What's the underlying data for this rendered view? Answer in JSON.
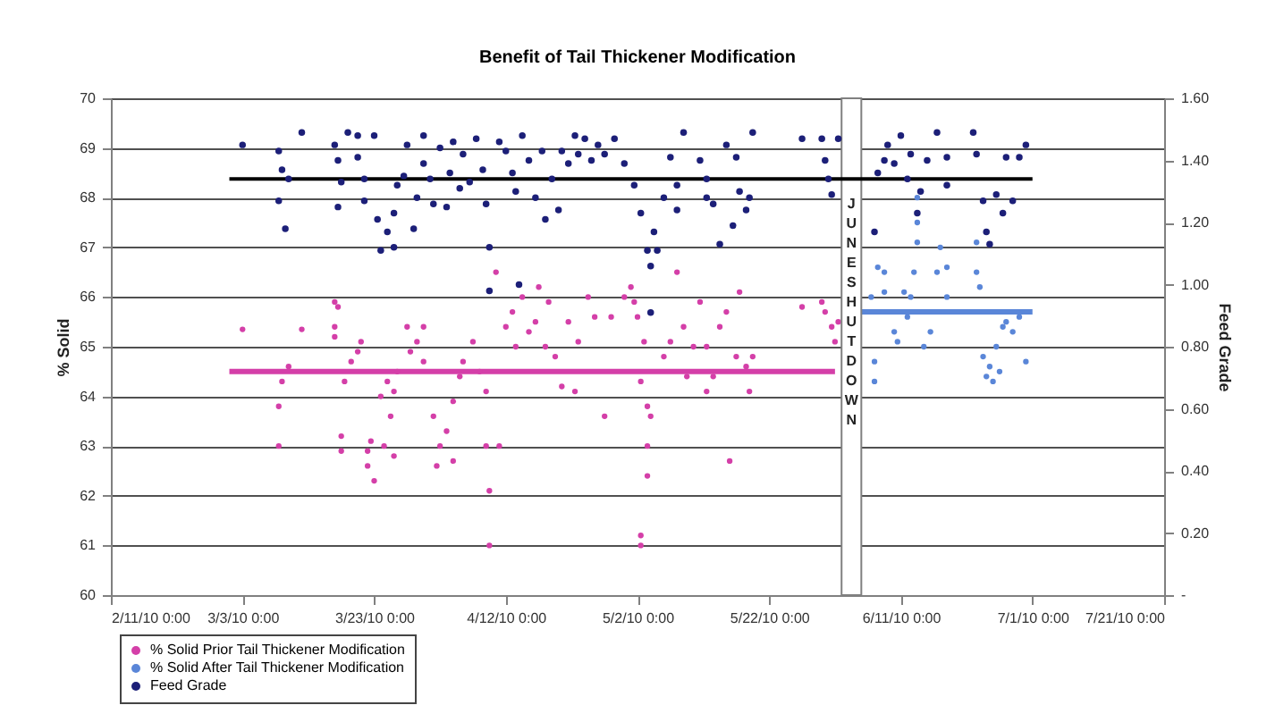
{
  "chart_data": {
    "type": "scatter",
    "title": "Benefit of Tail Thickener Modification",
    "ylabel": "% Solid",
    "y2label": "Feed Grade",
    "xlim": [
      "2010-02-11",
      "2010-07-21"
    ],
    "xticks": [
      {
        "value": "2010-02-11",
        "label": "2/11/10 0:00"
      },
      {
        "value": "2010-03-03",
        "label": "3/3/10 0:00"
      },
      {
        "value": "2010-03-23",
        "label": "3/23/10 0:00"
      },
      {
        "value": "2010-04-12",
        "label": "4/12/10 0:00"
      },
      {
        "value": "2010-05-02",
        "label": "5/2/10 0:00"
      },
      {
        "value": "2010-05-22",
        "label": "5/22/10 0:00"
      },
      {
        "value": "2010-06-11",
        "label": "6/11/10 0:00"
      },
      {
        "value": "2010-07-01",
        "label": "7/1/10 0:00"
      },
      {
        "value": "2010-07-21",
        "label": "7/21/10 0:00"
      }
    ],
    "ylim": [
      60,
      70
    ],
    "yticks": [
      60,
      61,
      62,
      63,
      64,
      65,
      66,
      67,
      68,
      69,
      70
    ],
    "y2lim": [
      0,
      1.6
    ],
    "y2ticks": [
      {
        "value": 0,
        "label": "-"
      },
      {
        "value": 0.2,
        "label": "0.20"
      },
      {
        "value": 0.4,
        "label": "0.40"
      },
      {
        "value": 0.6,
        "label": "0.60"
      },
      {
        "value": 0.8,
        "label": "0.80"
      },
      {
        "value": 1.0,
        "label": "1.00"
      },
      {
        "value": 1.2,
        "label": "1.20"
      },
      {
        "value": 1.4,
        "label": "1.40"
      },
      {
        "value": 1.6,
        "label": "1.60"
      }
    ],
    "grid": "y",
    "legend": "bottom left",
    "marker": "circle",
    "bands": [
      {
        "axis": "x",
        "from": "2010-06-02",
        "to": "2010-06-05",
        "label": "JUNE SHUTDOWN",
        "color": "#ffffff"
      }
    ],
    "series": [
      {
        "name": "% Solid Prior Tail Thickener Modification",
        "color": "#d43fa8",
        "x": [
          "2010-03-03",
          "2010-03-08T12:00",
          "2010-03-08T12:00",
          "2010-03-09",
          "2010-03-10",
          "2010-03-12",
          "2010-03-17",
          "2010-03-17T12:00",
          "2010-03-17",
          "2010-03-17",
          "2010-03-18",
          "2010-03-18",
          "2010-03-18T12:00",
          "2010-03-19T12:00",
          "2010-03-20T12:00",
          "2010-03-21",
          "2010-03-22",
          "2010-03-22",
          "2010-03-23",
          "2010-03-22T12:00",
          "2010-03-24",
          "2010-03-24T12:00",
          "2010-03-25",
          "2010-03-25T12:00",
          "2010-03-26",
          "2010-03-26",
          "2010-03-26T12:00",
          "2010-03-28",
          "2010-03-28T12:00",
          "2010-03-29T12:00",
          "2010-03-30T12:00",
          "2010-03-30T12:00",
          "2010-04-01",
          "2010-04-01T12:00",
          "2010-04-02",
          "2010-04-03",
          "2010-04-04",
          "2010-04-04",
          "2010-04-05",
          "2010-04-05T12:00",
          "2010-04-07",
          "2010-04-08",
          "2010-04-09",
          "2010-04-09",
          "2010-04-09T12:00",
          "2010-04-09T12:00",
          "2010-04-10T12:00",
          "2010-04-11",
          "2010-04-12",
          "2010-04-13",
          "2010-04-13T12:00",
          "2010-04-14T12:00",
          "2010-04-15T12:00",
          "2010-04-16T12:00",
          "2010-04-17",
          "2010-04-18",
          "2010-04-18T12:00",
          "2010-04-19T12:00",
          "2010-04-20T12:00",
          "2010-04-21T12:00",
          "2010-04-22T12:00",
          "2010-04-23",
          "2010-04-24T12:00",
          "2010-04-25T12:00",
          "2010-04-27",
          "2010-04-28",
          "2010-04-30",
          "2010-05-01",
          "2010-05-01T12:00",
          "2010-05-02",
          "2010-05-03",
          "2010-05-02T12:00",
          "2010-05-03T12:00",
          "2010-05-04",
          "2010-05-03T12:00",
          "2010-05-03T12:00",
          "2010-05-02T12:00",
          "2010-05-02T12:00",
          "2010-05-06",
          "2010-05-07",
          "2010-05-08",
          "2010-05-09",
          "2010-05-09T12:00",
          "2010-05-10T12:00",
          "2010-05-11T12:00",
          "2010-05-12T12:00",
          "2010-05-12T12:00",
          "2010-05-13T12:00",
          "2010-05-14T12:00",
          "2010-05-15T12:00",
          "2010-05-16",
          "2010-05-17",
          "2010-05-17T12:00",
          "2010-05-18T12:00",
          "2010-05-19",
          "2010-05-19T12:00",
          "2010-05-27",
          "2010-05-30",
          "2010-05-30T12:00",
          "2010-05-31T12:00",
          "2010-06-01",
          "2010-06-01T12:00"
        ],
        "values": [
          65.35,
          63.0,
          63.8,
          64.3,
          64.6,
          65.35,
          65.9,
          65.8,
          65.4,
          65.2,
          63.2,
          62.9,
          64.3,
          64.7,
          64.9,
          65.1,
          62.9,
          62.6,
          62.3,
          63.1,
          64.0,
          63.0,
          64.3,
          63.6,
          64.1,
          62.8,
          64.5,
          65.4,
          64.9,
          65.1,
          64.7,
          65.4,
          63.6,
          62.6,
          63.0,
          63.3,
          63.9,
          62.7,
          64.4,
          64.7,
          65.1,
          64.5,
          64.1,
          63.0,
          62.1,
          61.0,
          66.5,
          63.0,
          65.4,
          65.7,
          65.0,
          66.0,
          65.3,
          65.5,
          66.2,
          65.0,
          65.9,
          64.8,
          64.2,
          65.5,
          64.1,
          65.1,
          66.0,
          65.6,
          63.6,
          65.6,
          66.0,
          66.2,
          65.9,
          65.6,
          65.1,
          64.3,
          63.8,
          63.6,
          63.0,
          62.4,
          61.2,
          61.0,
          64.8,
          65.1,
          66.5,
          65.4,
          64.4,
          65.0,
          65.9,
          65.0,
          64.1,
          64.4,
          65.4,
          65.7,
          62.7,
          64.8,
          66.1,
          64.6,
          64.1,
          64.8,
          65.8,
          65.9,
          65.7,
          65.4,
          65.1,
          65.5
        ]
      },
      {
        "name": "% Solid After Tail Thickener Modification",
        "color": "#5a86d8",
        "x": [
          "2010-06-06T12:00",
          "2010-06-07",
          "2010-06-07",
          "2010-06-07T12:00",
          "2010-06-08T12:00",
          "2010-06-08T12:00",
          "2010-06-10",
          "2010-06-10T12:00",
          "2010-06-11T12:00",
          "2010-06-12",
          "2010-06-12T12:00",
          "2010-06-13",
          "2010-06-13T12:00",
          "2010-06-13T12:00",
          "2010-06-13T12:00",
          "2010-06-14T12:00",
          "2010-06-15T12:00",
          "2010-06-16T12:00",
          "2010-06-17",
          "2010-06-18",
          "2010-06-18",
          "2010-06-22T12:00",
          "2010-06-22T12:00",
          "2010-06-23",
          "2010-06-23T12:00",
          "2010-06-24",
          "2010-06-24T12:00",
          "2010-06-25",
          "2010-06-25T12:00",
          "2010-06-26",
          "2010-06-26T12:00",
          "2010-06-27",
          "2010-06-28",
          "2010-06-29",
          "2010-06-30"
        ],
        "values": [
          66.0,
          64.7,
          64.3,
          66.6,
          66.5,
          66.1,
          65.3,
          65.1,
          66.1,
          65.6,
          66.0,
          66.5,
          68.0,
          67.5,
          67.1,
          65.0,
          65.3,
          66.5,
          67.0,
          66.0,
          66.6,
          67.1,
          66.5,
          66.2,
          64.8,
          64.4,
          64.6,
          64.3,
          65.0,
          64.5,
          65.4,
          65.5,
          65.3,
          65.6,
          64.7
        ]
      },
      {
        "name": "Feed Grade",
        "axis": "y2",
        "color": "#1c1f78",
        "x": [
          "2010-03-03",
          "2010-03-08T12:00",
          "2010-03-09",
          "2010-03-10",
          "2010-03-08T12:00",
          "2010-03-09T12:00",
          "2010-03-12",
          "2010-03-17",
          "2010-03-17T12:00",
          "2010-03-18",
          "2010-03-17T12:00",
          "2010-03-19",
          "2010-03-20T12:00",
          "2010-03-20T12:00",
          "2010-03-21T12:00",
          "2010-03-21T12:00",
          "2010-03-23",
          "2010-03-23T12:00",
          "2010-03-24",
          "2010-03-25",
          "2010-03-26",
          "2010-03-26",
          "2010-03-26T12:00",
          "2010-03-27T12:00",
          "2010-03-28",
          "2010-03-29",
          "2010-03-29T12:00",
          "2010-03-30T12:00",
          "2010-03-30T12:00",
          "2010-03-31T12:00",
          "2010-04-01",
          "2010-04-02",
          "2010-04-03",
          "2010-04-03T12:00",
          "2010-04-04",
          "2010-04-05",
          "2010-04-05T12:00",
          "2010-04-06T12:00",
          "2010-04-07T12:00",
          "2010-04-08T12:00",
          "2010-04-09",
          "2010-04-09T12:00",
          "2010-04-09T12:00",
          "2010-04-11",
          "2010-04-12",
          "2010-04-13",
          "2010-04-13T12:00",
          "2010-04-14",
          "2010-04-14T12:00",
          "2010-04-15T12:00",
          "2010-04-16T12:00",
          "2010-04-17T12:00",
          "2010-04-18",
          "2010-04-19",
          "2010-04-20",
          "2010-04-20T12:00",
          "2010-04-21T12:00",
          "2010-04-22T12:00",
          "2010-04-23",
          "2010-04-24",
          "2010-04-25",
          "2010-04-26",
          "2010-04-27",
          "2010-04-28T12:00",
          "2010-04-30",
          "2010-05-01T12:00",
          "2010-05-02T12:00",
          "2010-05-03T12:00",
          "2010-05-04",
          "2010-05-05",
          "2010-05-04",
          "2010-05-04T12:00",
          "2010-05-06",
          "2010-05-07",
          "2010-05-08",
          "2010-05-09",
          "2010-05-08",
          "2010-05-11T12:00",
          "2010-05-12T12:00",
          "2010-05-12T12:00",
          "2010-05-13T12:00",
          "2010-05-14T12:00",
          "2010-05-15T12:00",
          "2010-05-16T12:00",
          "2010-05-17",
          "2010-05-17T12:00",
          "2010-05-18T12:00",
          "2010-05-19",
          "2010-05-19T12:00",
          "2010-05-27",
          "2010-05-30",
          "2010-05-30T12:00",
          "2010-05-31",
          "2010-05-31T12:00",
          "2010-06-01T12:00",
          "2010-06-07",
          "2010-06-07T12:00",
          "2010-06-08T12:00",
          "2010-06-09",
          "2010-06-10",
          "2010-06-11",
          "2010-06-12",
          "2010-06-12T12:00",
          "2010-06-13T12:00",
          "2010-06-14",
          "2010-06-15",
          "2010-06-16T12:00",
          "2010-06-18",
          "2010-06-18",
          "2010-06-22",
          "2010-06-22T12:00",
          "2010-06-23T12:00",
          "2010-06-24",
          "2010-06-24T12:00",
          "2010-06-25T12:00",
          "2010-06-26T12:00",
          "2010-06-27",
          "2010-06-28",
          "2010-06-29",
          "2010-06-30"
        ],
        "values": [
          1.45,
          1.43,
          1.37,
          1.34,
          1.27,
          1.18,
          1.49,
          1.45,
          1.4,
          1.33,
          1.25,
          1.49,
          1.48,
          1.41,
          1.34,
          1.27,
          1.48,
          1.21,
          1.11,
          1.17,
          1.23,
          1.12,
          1.32,
          1.35,
          1.45,
          1.18,
          1.28,
          1.39,
          1.48,
          1.34,
          1.26,
          1.44,
          1.25,
          1.36,
          1.46,
          1.31,
          1.42,
          1.33,
          1.47,
          1.37,
          1.26,
          1.12,
          0.98,
          1.46,
          1.43,
          1.36,
          1.3,
          1.0,
          1.48,
          1.4,
          1.28,
          1.43,
          1.21,
          1.34,
          1.24,
          1.43,
          1.39,
          1.48,
          1.42,
          1.47,
          1.4,
          1.45,
          1.42,
          1.47,
          1.39,
          1.32,
          1.23,
          1.11,
          1.06,
          1.11,
          0.91,
          1.17,
          1.28,
          1.41,
          1.32,
          1.49,
          1.24,
          1.4,
          1.34,
          1.28,
          1.26,
          1.13,
          1.45,
          1.19,
          1.41,
          1.3,
          1.24,
          1.28,
          1.49,
          1.47,
          1.47,
          1.4,
          1.34,
          1.29,
          1.47,
          1.17,
          1.36,
          1.4,
          1.45,
          1.39,
          1.48,
          1.34,
          1.42,
          1.23,
          1.3,
          1.4,
          1.49,
          1.32,
          1.41,
          1.49,
          1.42,
          1.27,
          1.17,
          1.13,
          1.29,
          1.23,
          1.41,
          1.27,
          1.41,
          1.45
        ]
      },
      {
        "type": "line",
        "marker": "none",
        "line_style": "solid",
        "color": "#d43fa8",
        "x": [
          "2010-03-01",
          "2010-06-01"
        ],
        "values": [
          64.5,
          64.5
        ]
      },
      {
        "type": "line",
        "marker": "none",
        "line_style": "solid",
        "color": "#5a86d8",
        "x": [
          "2010-06-05",
          "2010-07-01"
        ],
        "values": [
          65.7,
          65.7
        ]
      },
      {
        "type": "line",
        "marker": "none",
        "line_style": "solid",
        "axis": "y2",
        "color": "#000000",
        "x": [
          "2010-03-01",
          "2010-07-01"
        ],
        "values": [
          1.34,
          1.34
        ]
      }
    ]
  }
}
